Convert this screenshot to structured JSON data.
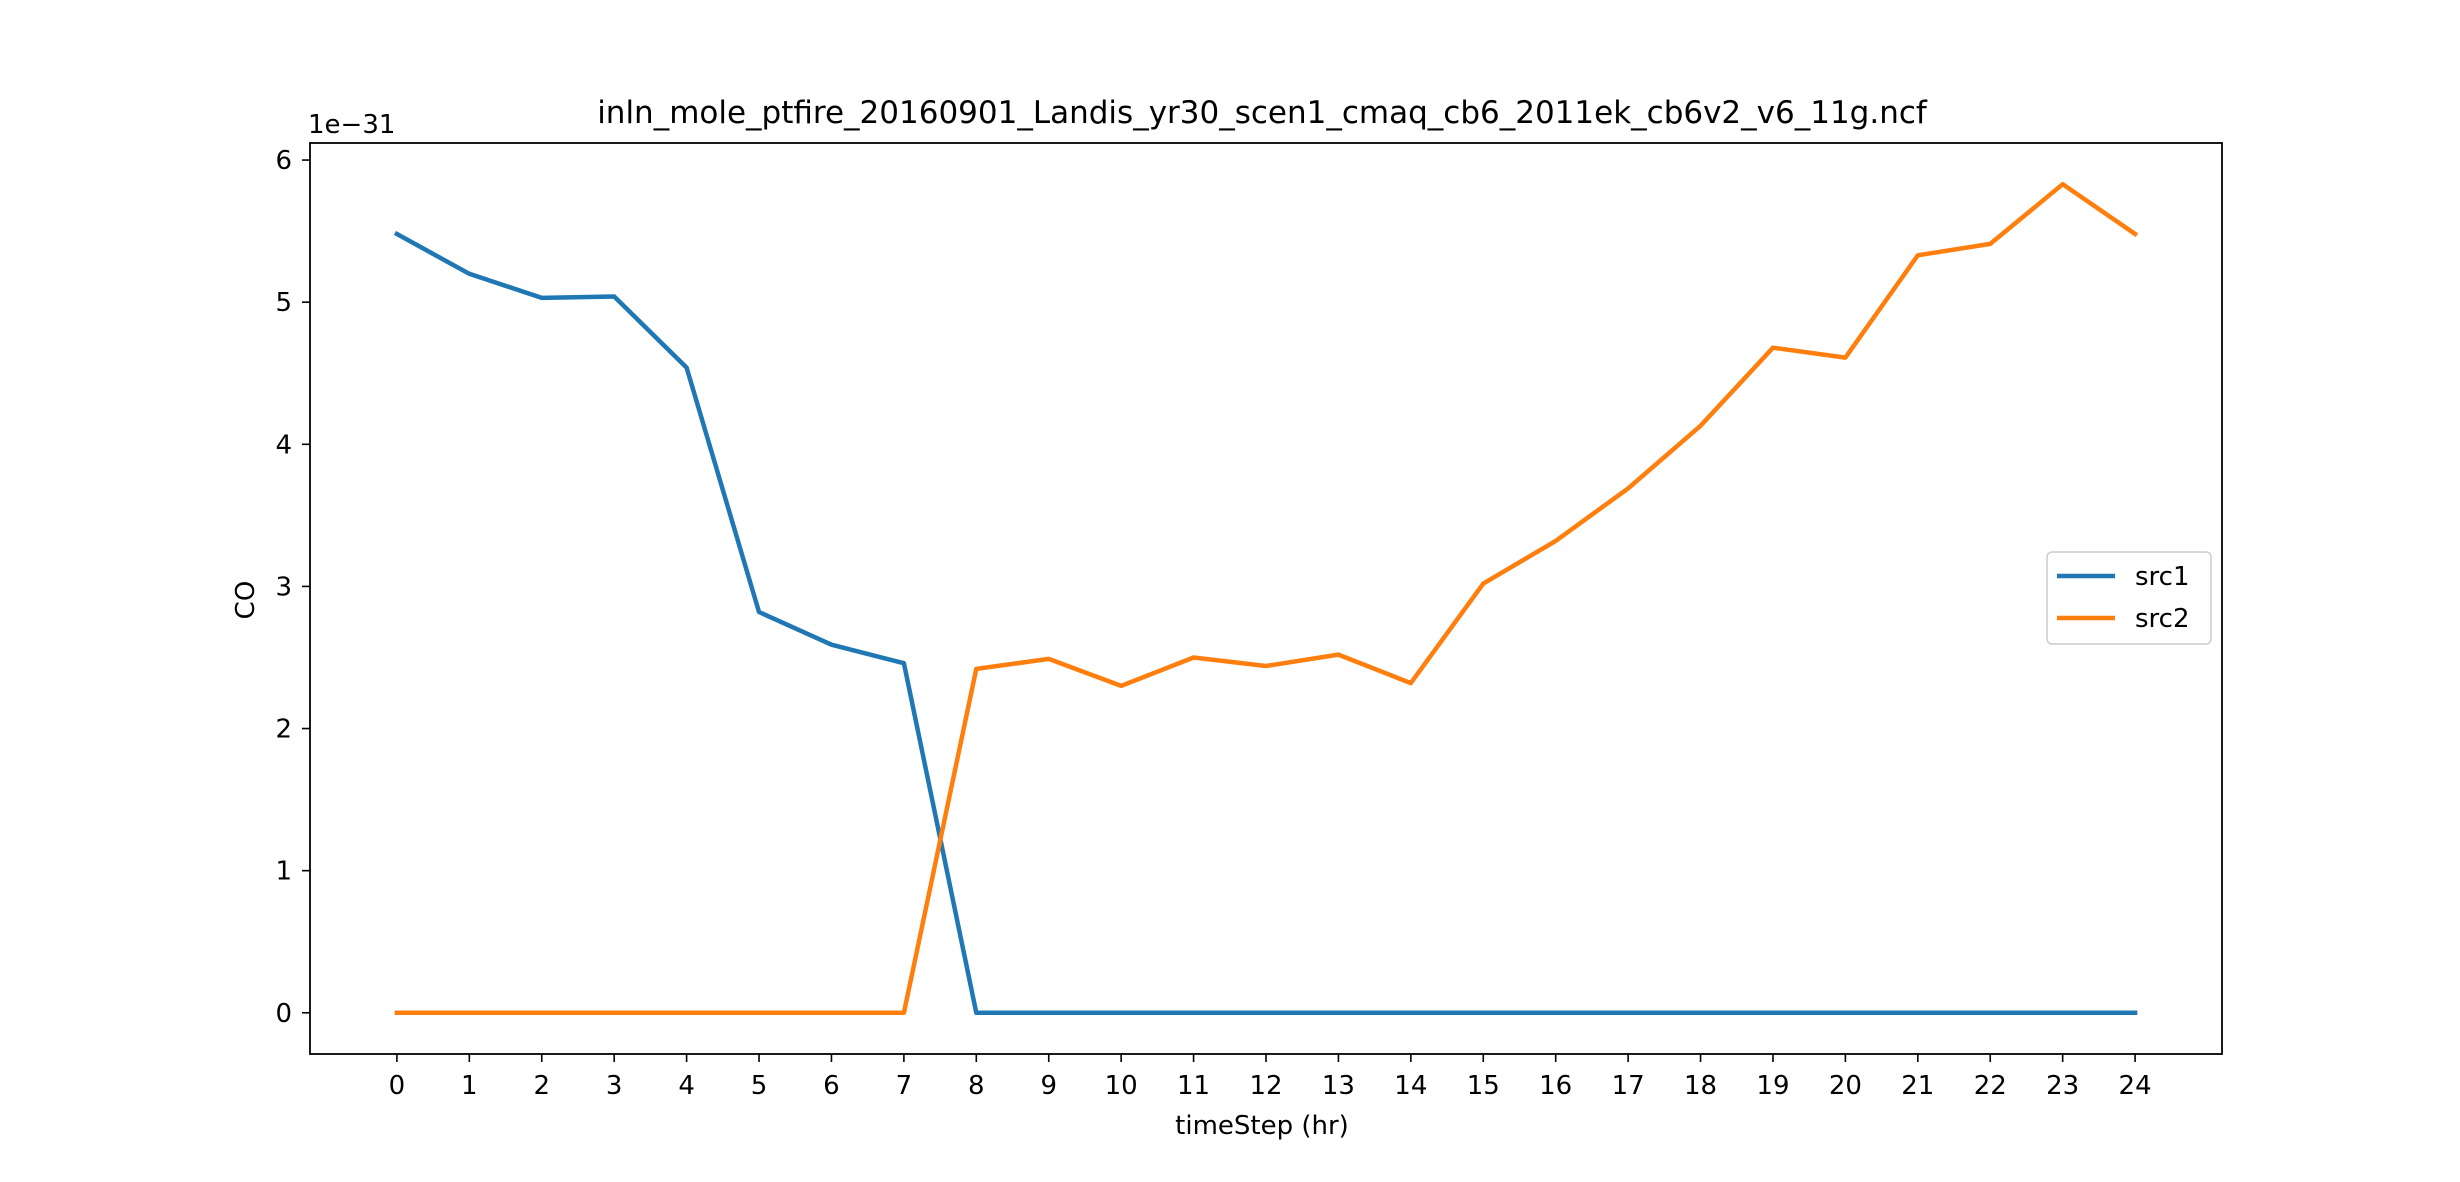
{
  "chart_data": {
    "type": "line",
    "title": "inln_mole_ptfire_20160901_Landis_yr30_scen1_cmaq_cb6_2011ek_cb6v2_v6_11g.ncf",
    "xlabel": "timeStep (hr)",
    "ylabel": "CO",
    "y_multiplier_label": "1e−31",
    "x": [
      0,
      1,
      2,
      3,
      4,
      5,
      6,
      7,
      8,
      9,
      10,
      11,
      12,
      13,
      14,
      15,
      16,
      17,
      18,
      19,
      20,
      21,
      22,
      23,
      24
    ],
    "x_tick_labels": [
      "0",
      "1",
      "2",
      "3",
      "4",
      "5",
      "6",
      "7",
      "8",
      "9",
      "10",
      "11",
      "12",
      "13",
      "14",
      "15",
      "16",
      "17",
      "18",
      "19",
      "20",
      "21",
      "22",
      "23",
      "24"
    ],
    "y_ticks": [
      0,
      1,
      2,
      3,
      4,
      5,
      6
    ],
    "y_tick_labels": [
      "0",
      "1",
      "2",
      "3",
      "4",
      "5",
      "6"
    ],
    "xlim": [
      -1.2,
      25.2
    ],
    "ylim": [
      -0.29,
      6.12
    ],
    "grid": false,
    "legend_position": "center-right",
    "series": [
      {
        "name": "src1",
        "color": "#1f77b4",
        "values": [
          5.48,
          5.2,
          5.03,
          5.04,
          4.54,
          2.82,
          2.59,
          2.46,
          0,
          0,
          0,
          0,
          0,
          0,
          0,
          0,
          0,
          0,
          0,
          0,
          0,
          0,
          0,
          0,
          0
        ]
      },
      {
        "name": "src2",
        "color": "#ff7f0e",
        "values": [
          0,
          0,
          0,
          0,
          0,
          0,
          0,
          0,
          2.42,
          2.49,
          2.3,
          2.5,
          2.44,
          2.52,
          2.32,
          3.02,
          3.32,
          3.69,
          4.13,
          4.68,
          4.61,
          5.33,
          5.41,
          5.83,
          5.48
        ]
      }
    ]
  }
}
